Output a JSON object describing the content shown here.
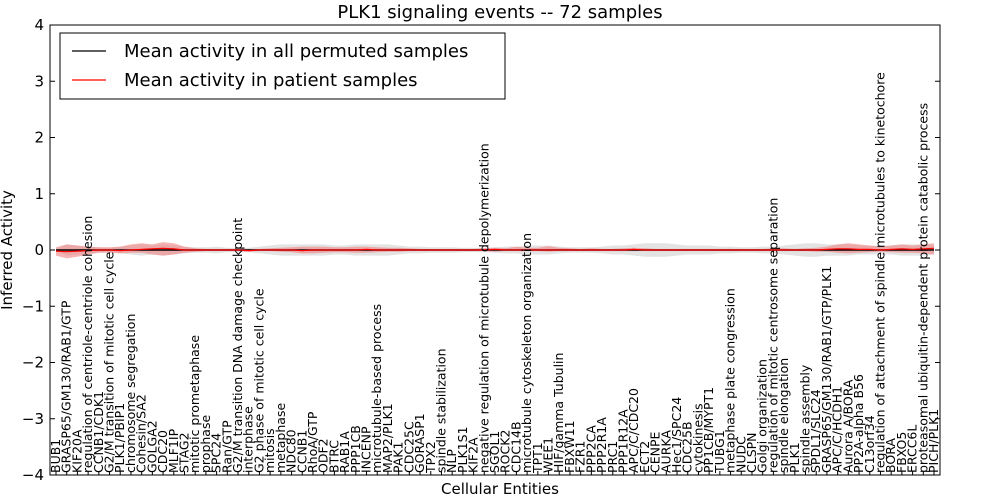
{
  "chart_data": {
    "type": "line",
    "title": "PLK1 signaling events -- 72 samples",
    "xlabel": "Cellular Entities",
    "ylabel": "Inferred Activity",
    "ylim": [
      -4,
      4
    ],
    "yticks": [
      -4,
      -3,
      -2,
      -1,
      0,
      1,
      2,
      3,
      4
    ],
    "grid": false,
    "legend_position": "top-left",
    "categories": [
      "BUB1",
      "GRASP65/GM130/RAB1/GTP",
      "KIF20A",
      "regulation of centriole-centriole cohesion",
      "CCNB1/CDK1",
      "G2/M transition of mitotic cell cycle",
      "PLK1/PBIP1",
      "chromosome segregation",
      "Cohesin/SA2",
      "GOLGA2",
      "CDC20",
      "MLF1IP",
      "STAG2",
      "mitotic prometaphase",
      "prophase",
      "SPC24",
      "Ran/GTP",
      "G2/M transition DNA damage checkpoint",
      "interphase",
      "G2 phase of mitotic cell cycle",
      "mitosis",
      "metaphase",
      "NDC80",
      "CCNB1",
      "RhoA/GTP",
      "ODF2",
      "BTRC",
      "RAB1A",
      "PPP1CB",
      "INCENP",
      "microtubule-based process",
      "MAP2/PLK1",
      "PAK1",
      "CDC25C",
      "GORASP1",
      "TPX2",
      "spindle stabilization",
      "NLP",
      "PLK1S1",
      "KIF2A",
      "negative regulation of microtubule depolymerization",
      "SGOL1",
      "ROCK2",
      "CDC14B",
      "microtubule cytoskeleton organization",
      "TPT1",
      "WEE1",
      "HIF/gamma Tubulin",
      "FBXW11",
      "FZR1",
      "PPP2CA",
      "PPP2R1A",
      "PRC1",
      "PPP1R12A",
      "APC/C/CDC20",
      "ECT2",
      "CENPE",
      "AURKA",
      "Hec1/SPC24",
      "CDC25B",
      "cytokinesis",
      "PP1CB/MYPT1",
      "TUBG1",
      "metaphase plate congression",
      "NUDC",
      "CLSPN",
      "Golgi organization",
      "regulation of mitotic centrosome separation",
      "spindle elongation",
      "PLK1",
      "spindle assembly",
      "SPDL1/SLC24",
      "GRASP65/GM130/RAB1/GTP/PLK1",
      "APC/C/HCDH1",
      "Aurora A/BORA",
      "PP2A-alpha B56",
      "C13orf34",
      "regulation of attachment of spindle microtubules to kinetochore",
      "BORA",
      "FBXO5",
      "ERCC6L",
      "proteasomal ubiquitin-dependent protein catabolic process",
      "PICH/PLK1"
    ],
    "series": [
      {
        "name": "Mean activity in all permuted samples",
        "color": "#000000",
        "band_color": "#cccccc",
        "values": [
          0.0,
          0.0,
          0.0,
          0.0,
          0.0,
          0.0,
          0.0,
          0.0,
          0.0,
          0.0,
          0.0,
          0.0,
          0.0,
          0.0,
          0.0,
          0.0,
          0.0,
          0.0,
          0.0,
          0.0,
          0.0,
          0.0,
          0.0,
          0.0,
          0.0,
          0.0,
          0.0,
          0.0,
          0.0,
          0.0,
          0.0,
          0.0,
          0.0,
          0.0,
          0.0,
          0.0,
          0.0,
          0.0,
          0.0,
          0.0,
          0.0,
          0.0,
          0.0,
          0.0,
          0.0,
          0.0,
          0.0,
          0.0,
          0.0,
          0.0,
          0.0,
          0.0,
          0.0,
          0.0,
          0.0,
          0.0,
          0.0,
          0.0,
          0.0,
          0.0,
          0.0,
          0.0,
          0.0,
          0.0,
          0.0,
          0.0,
          0.0,
          0.0,
          0.0,
          0.0,
          0.0,
          0.0,
          0.0,
          0.0,
          0.0,
          0.0,
          0.0,
          0.0,
          0.0,
          0.0,
          0.0,
          0.0,
          0.0
        ],
        "lower": [
          -0.02,
          -0.1,
          -0.08,
          -0.06,
          -0.05,
          -0.04,
          -0.06,
          -0.08,
          -0.1,
          -0.08,
          -0.1,
          -0.08,
          -0.06,
          -0.05,
          -0.05,
          -0.06,
          -0.04,
          -0.04,
          -0.04,
          -0.06,
          -0.08,
          -0.1,
          -0.1,
          -0.1,
          -0.1,
          -0.1,
          -0.08,
          -0.08,
          -0.1,
          -0.1,
          -0.1,
          -0.1,
          -0.08,
          -0.06,
          -0.06,
          -0.05,
          -0.05,
          -0.05,
          -0.04,
          -0.04,
          -0.04,
          -0.05,
          -0.06,
          -0.06,
          -0.08,
          -0.08,
          -0.08,
          -0.06,
          -0.05,
          -0.05,
          -0.05,
          -0.06,
          -0.08,
          -0.08,
          -0.1,
          -0.12,
          -0.12,
          -0.12,
          -0.1,
          -0.08,
          -0.08,
          -0.08,
          -0.06,
          -0.06,
          -0.05,
          -0.05,
          -0.06,
          -0.06,
          -0.08,
          -0.1,
          -0.12,
          -0.12,
          -0.1,
          -0.1,
          -0.1,
          -0.08,
          -0.08,
          -0.08,
          -0.08,
          -0.1,
          -0.1,
          -0.1,
          -0.08
        ],
        "upper": [
          0.02,
          0.1,
          0.08,
          0.06,
          0.05,
          0.04,
          0.06,
          0.08,
          0.1,
          0.08,
          0.1,
          0.08,
          0.06,
          0.05,
          0.05,
          0.06,
          0.04,
          0.04,
          0.04,
          0.06,
          0.08,
          0.1,
          0.1,
          0.1,
          0.1,
          0.1,
          0.08,
          0.08,
          0.1,
          0.1,
          0.1,
          0.1,
          0.08,
          0.06,
          0.06,
          0.05,
          0.05,
          0.05,
          0.04,
          0.04,
          0.04,
          0.05,
          0.06,
          0.06,
          0.08,
          0.08,
          0.08,
          0.06,
          0.05,
          0.05,
          0.05,
          0.06,
          0.08,
          0.08,
          0.1,
          0.12,
          0.12,
          0.12,
          0.1,
          0.08,
          0.08,
          0.08,
          0.06,
          0.06,
          0.05,
          0.05,
          0.06,
          0.06,
          0.08,
          0.1,
          0.12,
          0.12,
          0.1,
          0.1,
          0.1,
          0.08,
          0.08,
          0.08,
          0.08,
          0.1,
          0.1,
          0.1,
          0.08
        ]
      },
      {
        "name": "Mean activity in patient samples",
        "color": "#ff0000",
        "band_color": "#f08080",
        "values": [
          -0.02,
          -0.03,
          -0.02,
          -0.01,
          0.0,
          0.0,
          -0.01,
          0.0,
          0.01,
          0.02,
          0.03,
          0.02,
          0.0,
          0.0,
          0.0,
          0.0,
          0.0,
          0.0,
          -0.01,
          0.0,
          0.0,
          0.0,
          0.0,
          -0.01,
          0.0,
          0.0,
          0.0,
          0.0,
          0.0,
          0.01,
          0.0,
          0.0,
          0.0,
          0.0,
          0.0,
          0.0,
          0.0,
          0.0,
          0.0,
          0.0,
          0.0,
          0.01,
          0.0,
          0.0,
          0.0,
          0.0,
          0.0,
          0.0,
          0.0,
          0.0,
          0.0,
          0.0,
          0.0,
          0.0,
          0.01,
          0.0,
          0.0,
          0.0,
          0.0,
          0.0,
          0.0,
          0.0,
          0.0,
          0.0,
          0.0,
          0.0,
          0.0,
          0.0,
          0.0,
          0.0,
          0.0,
          0.0,
          0.01,
          0.02,
          0.02,
          0.01,
          0.01,
          0.0,
          0.01,
          0.02,
          0.01,
          0.02,
          0.03
        ],
        "lower": [
          -0.1,
          -0.15,
          -0.12,
          -0.08,
          -0.05,
          -0.05,
          -0.06,
          -0.05,
          -0.05,
          -0.08,
          -0.1,
          -0.08,
          -0.05,
          -0.03,
          -0.02,
          -0.02,
          -0.02,
          -0.02,
          -0.03,
          -0.02,
          -0.02,
          -0.03,
          -0.04,
          -0.06,
          -0.06,
          -0.05,
          -0.04,
          -0.04,
          -0.05,
          -0.05,
          -0.04,
          -0.03,
          -0.03,
          -0.02,
          -0.02,
          -0.02,
          -0.02,
          -0.02,
          -0.02,
          -0.02,
          -0.02,
          -0.03,
          -0.02,
          -0.02,
          -0.02,
          -0.02,
          -0.03,
          -0.02,
          -0.02,
          -0.02,
          -0.02,
          -0.02,
          -0.02,
          -0.02,
          -0.02,
          -0.02,
          -0.02,
          -0.02,
          -0.02,
          -0.02,
          -0.02,
          -0.02,
          -0.02,
          -0.02,
          -0.02,
          -0.02,
          -0.02,
          -0.02,
          -0.02,
          -0.02,
          -0.02,
          -0.03,
          -0.03,
          -0.05,
          -0.06,
          -0.05,
          -0.04,
          -0.03,
          -0.04,
          -0.05,
          -0.05,
          -0.06,
          -0.08
        ],
        "upper": [
          0.05,
          0.1,
          0.08,
          0.06,
          0.05,
          0.05,
          0.06,
          0.1,
          0.12,
          0.1,
          0.14,
          0.12,
          0.06,
          0.03,
          0.02,
          0.02,
          0.02,
          0.02,
          0.02,
          0.02,
          0.03,
          0.04,
          0.05,
          0.06,
          0.06,
          0.06,
          0.05,
          0.05,
          0.06,
          0.06,
          0.05,
          0.04,
          0.04,
          0.03,
          0.02,
          0.02,
          0.02,
          0.02,
          0.02,
          0.02,
          0.03,
          0.04,
          0.03,
          0.06,
          0.04,
          0.04,
          0.07,
          0.04,
          0.03,
          0.02,
          0.03,
          0.02,
          0.02,
          0.03,
          0.04,
          0.03,
          0.02,
          0.02,
          0.02,
          0.02,
          0.02,
          0.02,
          0.02,
          0.02,
          0.02,
          0.02,
          0.02,
          0.03,
          0.03,
          0.02,
          0.03,
          0.04,
          0.06,
          0.1,
          0.12,
          0.1,
          0.08,
          0.06,
          0.08,
          0.1,
          0.08,
          0.1,
          0.12
        ]
      }
    ]
  }
}
